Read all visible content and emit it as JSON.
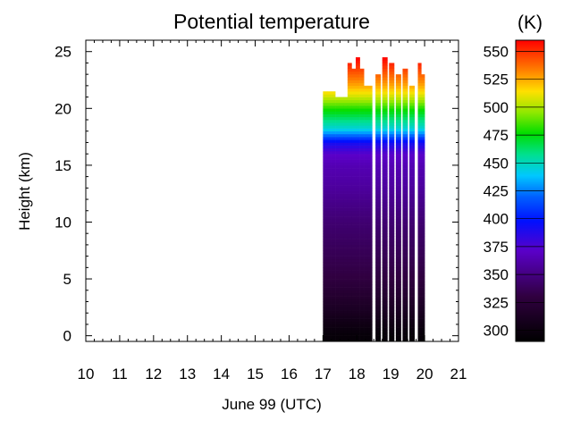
{
  "chart_data": {
    "type": "heatmap",
    "title": "Potential temperature",
    "xlabel": "June 99 (UTC)",
    "ylabel": "Height (km)",
    "xlim": [
      10,
      21
    ],
    "ylim": [
      -0.5,
      26
    ],
    "x_ticks": [
      10,
      11,
      12,
      13,
      14,
      15,
      16,
      17,
      18,
      19,
      20,
      21
    ],
    "y_ticks": [
      0,
      5,
      10,
      15,
      20,
      25
    ],
    "colorbar": {
      "unit": "(K)",
      "range": [
        290,
        560
      ],
      "ticks": [
        300,
        325,
        350,
        375,
        400,
        425,
        450,
        475,
        500,
        525,
        550
      ]
    },
    "data_coverage": [
      {
        "start": 17.0,
        "end": 18.45,
        "top_km": [
          21.5,
          21.5,
          21.5,
          21.0,
          21.0,
          21.0,
          24.0,
          23.5,
          24.5,
          23.5,
          22.0,
          22.0
        ]
      },
      {
        "start": 18.55,
        "end": 18.7,
        "top_km": [
          23.0
        ]
      },
      {
        "start": 18.75,
        "end": 18.9,
        "top_km": [
          24.5
        ]
      },
      {
        "start": 18.95,
        "end": 19.1,
        "top_km": [
          24.0
        ]
      },
      {
        "start": 19.15,
        "end": 19.3,
        "top_km": [
          23.0
        ]
      },
      {
        "start": 19.35,
        "end": 19.5,
        "top_km": [
          23.5
        ]
      },
      {
        "start": 19.55,
        "end": 19.7,
        "top_km": [
          22.0
        ]
      },
      {
        "start": 19.8,
        "end": 20.0,
        "top_km": [
          24.0,
          23.0
        ]
      }
    ],
    "profile_km_to_K": [
      [
        0,
        295
      ],
      [
        2,
        310
      ],
      [
        5,
        330
      ],
      [
        10,
        345
      ],
      [
        13,
        358
      ],
      [
        15,
        365
      ],
      [
        16,
        372
      ],
      [
        17,
        392
      ],
      [
        17.6,
        420
      ],
      [
        18.2,
        445
      ],
      [
        19,
        460
      ],
      [
        20,
        480
      ],
      [
        21,
        505
      ],
      [
        22,
        525
      ],
      [
        23,
        540
      ],
      [
        24.5,
        560
      ]
    ]
  }
}
